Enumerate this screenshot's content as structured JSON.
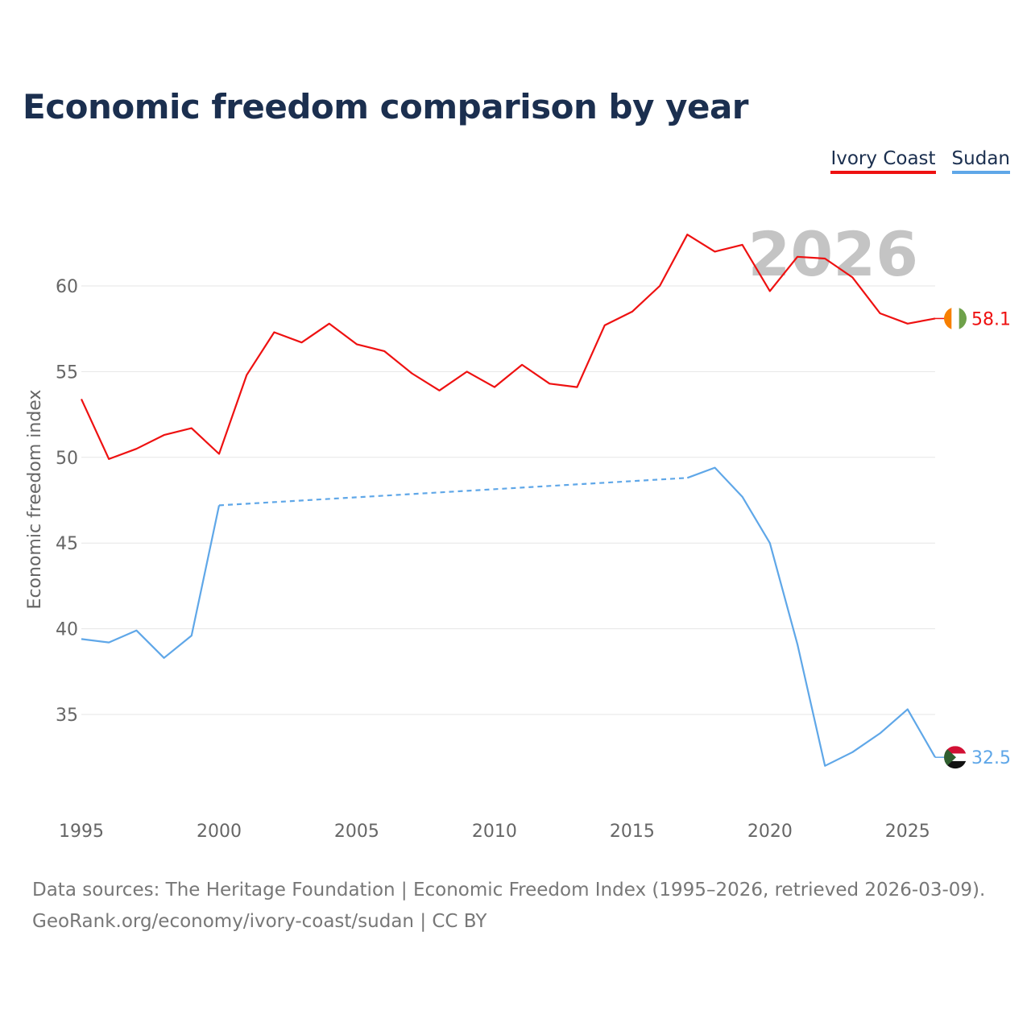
{
  "title": "Economic freedom comparison by year",
  "legend": [
    "Ivory Coast",
    "Sudan"
  ],
  "chart_data": {
    "type": "line",
    "title": "Economic freedom comparison by year",
    "xlabel": "",
    "ylabel": "Economic freedom index",
    "xlim": [
      1995,
      2026
    ],
    "ylim": [
      31,
      63
    ],
    "x_ticks": [
      1995,
      2000,
      2005,
      2010,
      2015,
      2020,
      2025
    ],
    "y_ticks": [
      35,
      40,
      45,
      50,
      55,
      60
    ],
    "year_watermark": "2026",
    "series": [
      {
        "name": "Ivory Coast",
        "color": "#ee1111",
        "end_label": "58.1",
        "flag_icon": "ivory-coast-flag-icon",
        "x": [
          1995,
          1996,
          1997,
          1998,
          1999,
          2000,
          2001,
          2002,
          2003,
          2004,
          2005,
          2006,
          2007,
          2008,
          2009,
          2010,
          2011,
          2012,
          2013,
          2014,
          2015,
          2016,
          2017,
          2018,
          2019,
          2020,
          2021,
          2022,
          2023,
          2024,
          2025,
          2026
        ],
        "values": [
          53.4,
          49.9,
          50.5,
          51.3,
          51.7,
          50.2,
          54.8,
          57.3,
          56.7,
          57.8,
          56.6,
          56.2,
          54.9,
          53.9,
          55.0,
          54.1,
          55.4,
          54.3,
          54.1,
          57.7,
          58.5,
          60.0,
          63.0,
          62.0,
          62.4,
          59.7,
          61.7,
          61.6,
          60.5,
          58.4,
          57.8,
          58.1
        ]
      },
      {
        "name": "Sudan",
        "color": "#5fa7e8",
        "end_label": "32.5",
        "flag_icon": "sudan-flag-icon",
        "x": [
          1995,
          1996,
          1997,
          1998,
          1999,
          2000,
          2017,
          2018,
          2019,
          2020,
          2021,
          2022,
          2023,
          2024,
          2025,
          2026
        ],
        "values": [
          39.4,
          39.2,
          39.9,
          38.3,
          39.6,
          47.2,
          48.8,
          49.4,
          47.7,
          45.0,
          39.1,
          32.0,
          32.8,
          33.9,
          35.3,
          32.5
        ],
        "gap_between": [
          2000,
          2017
        ]
      }
    ]
  },
  "source_line1": "Data sources: The Heritage Foundation | Economic Freedom Index (1995–2026, retrieved 2026-03-09).",
  "source_line2": "GeoRank.org/economy/ivory-coast/sudan | CC BY"
}
